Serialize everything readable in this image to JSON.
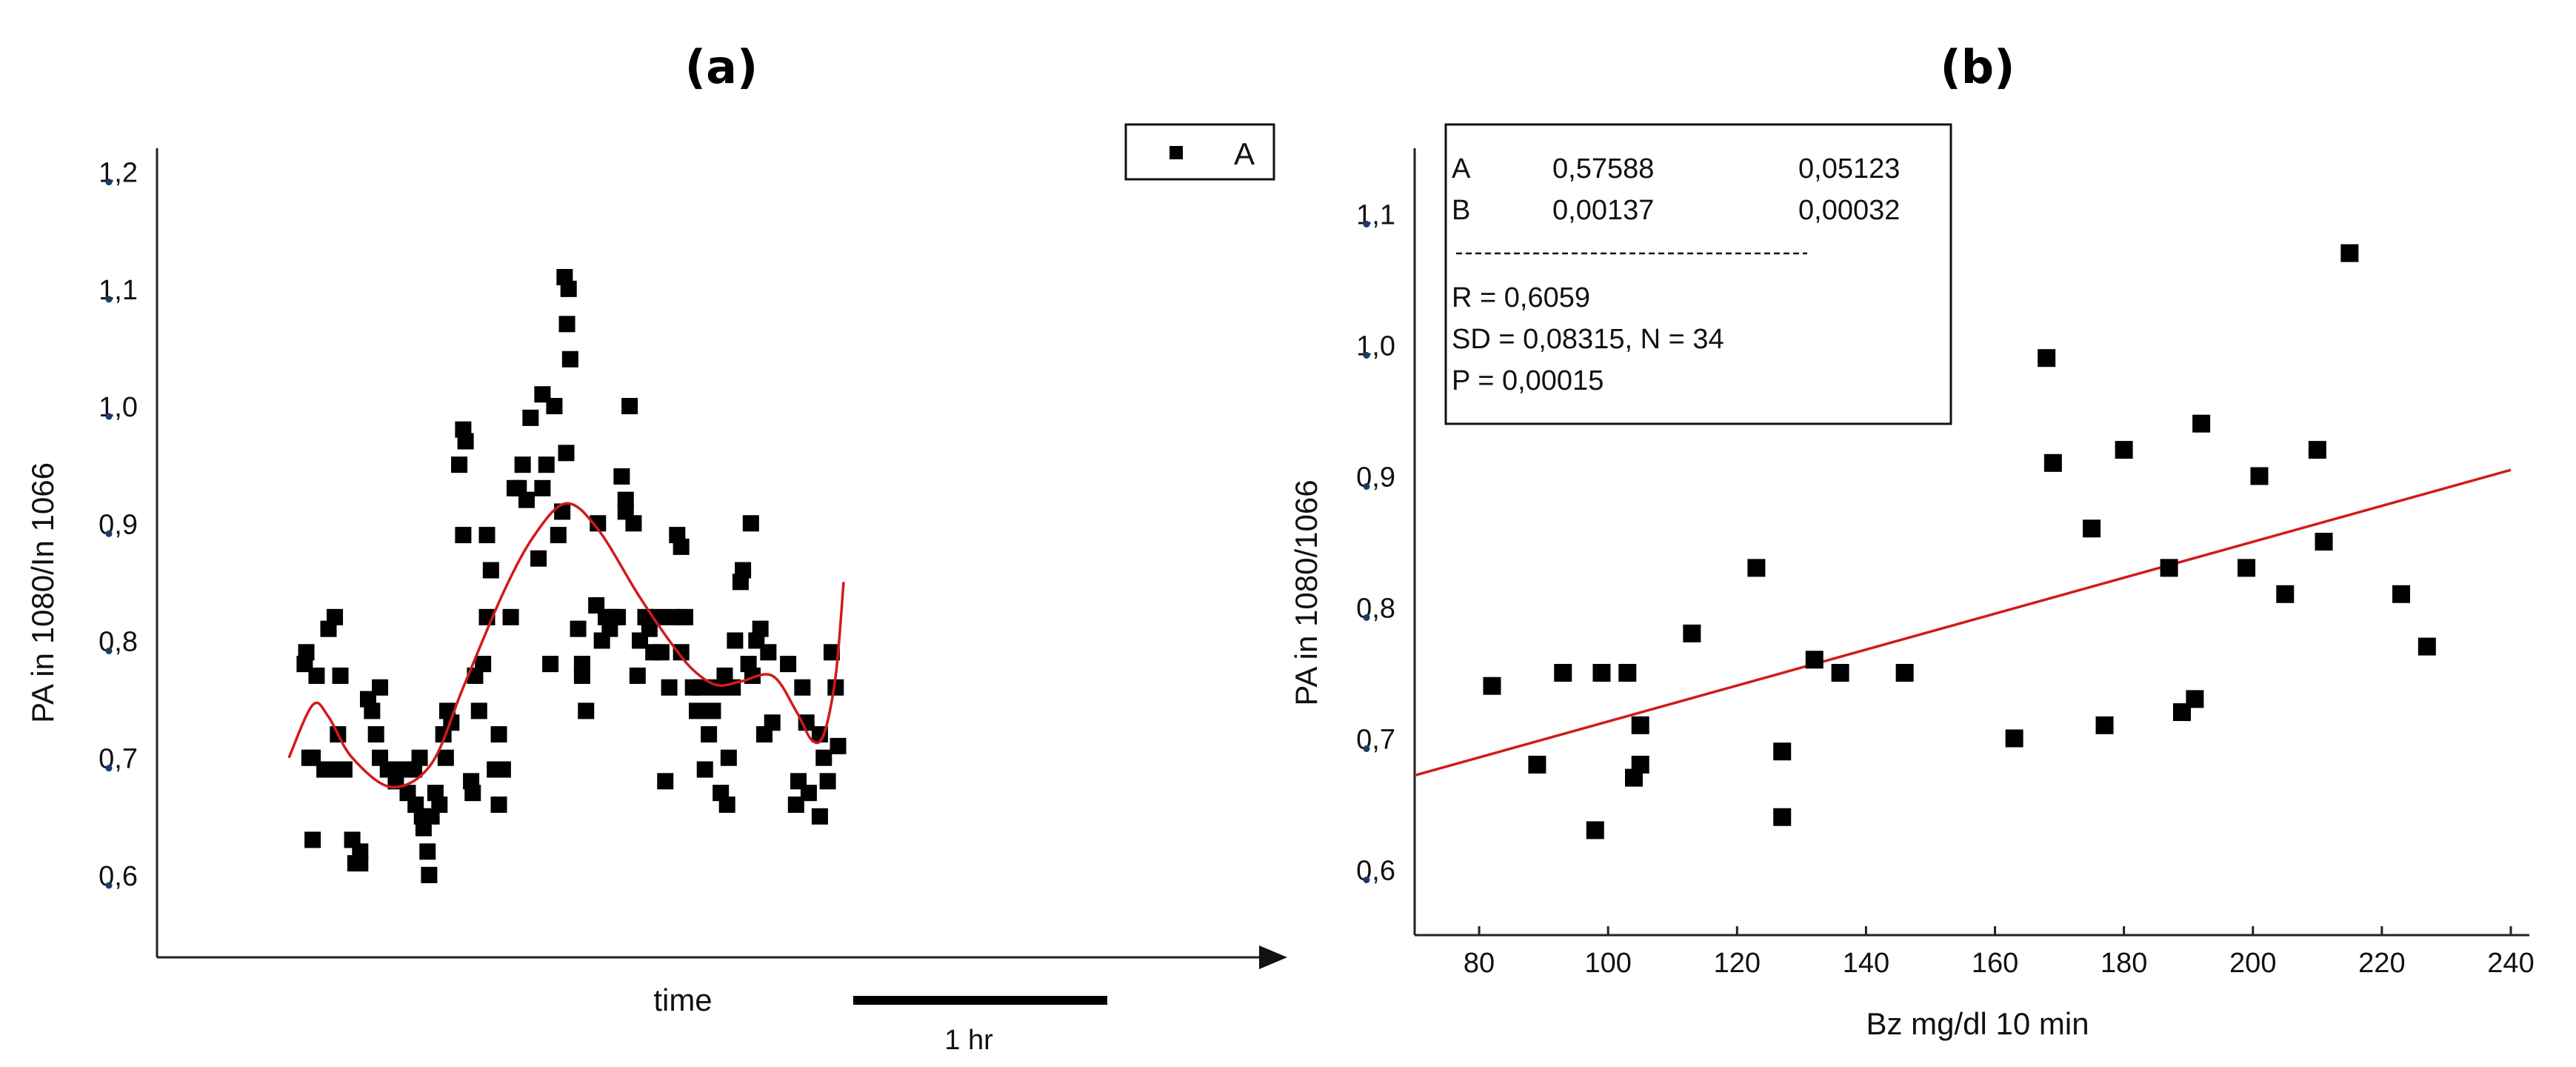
{
  "chart_data": [
    {
      "panel": "(a)",
      "type": "scatter",
      "title": "(a)",
      "xlabel": "time",
      "ylabel": "PA in 1080/In 1066",
      "ylim": [
        0.55,
        1.22
      ],
      "xlim": [
        0,
        100
      ],
      "y_ticks": [
        "1,2",
        "1,1",
        "1,0",
        "0,9",
        "0,8",
        "0,7",
        "0,6"
      ],
      "y_tick_values": [
        1.2,
        1.1,
        1.0,
        0.9,
        0.8,
        0.7,
        0.6
      ],
      "legend": {
        "label": "A",
        "position": "top-right"
      },
      "scale_bar": {
        "label": "1 hr",
        "length": 23
      },
      "grid": false,
      "series": [
        {
          "name": "A",
          "points": [
            [
              2,
              0.78
            ],
            [
              2.2,
              0.79
            ],
            [
              2.6,
              0.7
            ],
            [
              3,
              0.7
            ],
            [
              3,
              0.63
            ],
            [
              3.5,
              0.77
            ],
            [
              4.5,
              0.69
            ],
            [
              5,
              0.81
            ],
            [
              5.5,
              0.69
            ],
            [
              5.8,
              0.82
            ],
            [
              6,
              0.69
            ],
            [
              6.2,
              0.72
            ],
            [
              6.5,
              0.77
            ],
            [
              7,
              0.69
            ],
            [
              8,
              0.63
            ],
            [
              8.4,
              0.61
            ],
            [
              9,
              0.61
            ],
            [
              9,
              0.62
            ],
            [
              10,
              0.75
            ],
            [
              10.5,
              0.74
            ],
            [
              11,
              0.72
            ],
            [
              11.5,
              0.7
            ],
            [
              11.5,
              0.76
            ],
            [
              12.5,
              0.69
            ],
            [
              13.5,
              0.68
            ],
            [
              14,
              0.69
            ],
            [
              14.5,
              0.69
            ],
            [
              15,
              0.67
            ],
            [
              15.8,
              0.69
            ],
            [
              16,
              0.66
            ],
            [
              16.5,
              0.7
            ],
            [
              16.8,
              0.65
            ],
            [
              17,
              0.64
            ],
            [
              17.5,
              0.62
            ],
            [
              17.7,
              0.6
            ],
            [
              18,
              0.65
            ],
            [
              18.5,
              0.67
            ],
            [
              19,
              0.66
            ],
            [
              19.5,
              0.72
            ],
            [
              19.8,
              0.7
            ],
            [
              20,
              0.74
            ],
            [
              20.5,
              0.73
            ],
            [
              21.5,
              0.95
            ],
            [
              22,
              0.89
            ],
            [
              22,
              0.98
            ],
            [
              22.3,
              0.97
            ],
            [
              23,
              0.68
            ],
            [
              23.2,
              0.67
            ],
            [
              23.5,
              0.77
            ],
            [
              24,
              0.74
            ],
            [
              24.5,
              0.78
            ],
            [
              25,
              0.82
            ],
            [
              25,
              0.89
            ],
            [
              25.5,
              0.86
            ],
            [
              26,
              0.69
            ],
            [
              26.5,
              0.72
            ],
            [
              26.5,
              0.66
            ],
            [
              27,
              0.69
            ],
            [
              28,
              0.82
            ],
            [
              28.5,
              0.93
            ],
            [
              29,
              0.93
            ],
            [
              29.5,
              0.95
            ],
            [
              30,
              0.92
            ],
            [
              30.5,
              0.99
            ],
            [
              31.5,
              0.87
            ],
            [
              32,
              1.01
            ],
            [
              32,
              0.93
            ],
            [
              32.5,
              0.95
            ],
            [
              33,
              0.78
            ],
            [
              33.5,
              1.0
            ],
            [
              34,
              0.89
            ],
            [
              34.5,
              0.91
            ],
            [
              34.8,
              1.11
            ],
            [
              35,
              0.96
            ],
            [
              35.1,
              1.07
            ],
            [
              35.3,
              1.1
            ],
            [
              35.5,
              1.04
            ],
            [
              36.5,
              0.81
            ],
            [
              37,
              0.78
            ],
            [
              37,
              0.77
            ],
            [
              37.5,
              0.74
            ],
            [
              38.8,
              0.83
            ],
            [
              39,
              0.9
            ],
            [
              39.5,
              0.8
            ],
            [
              40,
              0.82
            ],
            [
              40.5,
              0.81
            ],
            [
              41,
              0.82
            ],
            [
              41.5,
              0.82
            ],
            [
              42,
              0.94
            ],
            [
              42.5,
              0.91
            ],
            [
              42.5,
              0.92
            ],
            [
              43,
              1.0
            ],
            [
              43.5,
              0.9
            ],
            [
              44,
              0.77
            ],
            [
              44.3,
              0.8
            ],
            [
              45,
              0.82
            ],
            [
              45.5,
              0.81
            ],
            [
              46,
              0.79
            ],
            [
              46.5,
              0.82
            ],
            [
              47,
              0.79
            ],
            [
              47.5,
              0.68
            ],
            [
              48,
              0.76
            ],
            [
              48.5,
              0.82
            ],
            [
              49,
              0.89
            ],
            [
              49.5,
              0.88
            ],
            [
              49.5,
              0.79
            ],
            [
              50,
              0.82
            ],
            [
              51,
              0.76
            ],
            [
              51.5,
              0.74
            ],
            [
              52,
              0.76
            ],
            [
              52.5,
              0.69
            ],
            [
              53,
              0.72
            ],
            [
              53.5,
              0.74
            ],
            [
              54,
              0.76
            ],
            [
              54.5,
              0.67
            ],
            [
              55,
              0.77
            ],
            [
              55.3,
              0.66
            ],
            [
              55.5,
              0.7
            ],
            [
              56,
              0.76
            ],
            [
              56.3,
              0.8
            ],
            [
              57,
              0.85
            ],
            [
              57.3,
              0.86
            ],
            [
              58,
              0.78
            ],
            [
              58.3,
              0.9
            ],
            [
              58.5,
              0.77
            ],
            [
              59,
              0.8
            ],
            [
              59.5,
              0.81
            ],
            [
              60,
              0.72
            ],
            [
              60.5,
              0.79
            ],
            [
              61,
              0.73
            ],
            [
              63,
              0.78
            ],
            [
              64,
              0.66
            ],
            [
              64.3,
              0.68
            ],
            [
              64.8,
              0.76
            ],
            [
              65.3,
              0.73
            ],
            [
              65.6,
              0.67
            ],
            [
              67,
              0.72
            ],
            [
              67,
              0.65
            ],
            [
              67.5,
              0.7
            ],
            [
              68,
              0.68
            ],
            [
              68.5,
              0.79
            ],
            [
              69,
              0.76
            ],
            [
              69.3,
              0.71
            ]
          ]
        }
      ],
      "fit_curve": [
        [
          0,
          0.7
        ],
        [
          3,
          0.745
        ],
        [
          5,
          0.735
        ],
        [
          8,
          0.7
        ],
        [
          13,
          0.675
        ],
        [
          18,
          0.695
        ],
        [
          22,
          0.76
        ],
        [
          27,
          0.84
        ],
        [
          31,
          0.89
        ],
        [
          35,
          0.917
        ],
        [
          39,
          0.895
        ],
        [
          44,
          0.84
        ],
        [
          48,
          0.8
        ],
        [
          51,
          0.775
        ],
        [
          54,
          0.762
        ],
        [
          57,
          0.765
        ],
        [
          61,
          0.77
        ],
        [
          64,
          0.74
        ],
        [
          66,
          0.715
        ],
        [
          67.5,
          0.72
        ],
        [
          69,
          0.77
        ],
        [
          70,
          0.85
        ]
      ]
    },
    {
      "panel": "(b)",
      "type": "scatter",
      "title": "(b)",
      "xlabel": "Bz mg/dl 10 min",
      "ylabel": "PA in 1080/1066",
      "xlim": [
        70,
        240
      ],
      "ylim": [
        0.55,
        1.15
      ],
      "x_ticks": [
        "80",
        "100",
        "120",
        "140",
        "160",
        "180",
        "200",
        "220",
        "240"
      ],
      "x_tick_values": [
        80,
        100,
        120,
        140,
        160,
        180,
        200,
        220,
        240
      ],
      "y_ticks": [
        "1,1",
        "1,0",
        "0,9",
        "0,8",
        "0,7",
        "0,6"
      ],
      "y_tick_values": [
        1.1,
        1.0,
        0.9,
        0.8,
        0.7,
        0.6
      ],
      "grid": false,
      "stats": {
        "row_a_name": "A",
        "row_a_value": "0,57588",
        "row_a_error": "0,05123",
        "row_b_name": "B",
        "row_b_value": "0,00137",
        "row_b_error": "0,00032",
        "r_line": "R = 0,6059",
        "sd_line": "SD = 0,08315, N = 34",
        "p_line": "P = 0,00015"
      },
      "series": [
        {
          "name": "data",
          "points": [
            [
              82,
              0.74
            ],
            [
              89,
              0.68
            ],
            [
              93,
              0.75
            ],
            [
              98,
              0.63
            ],
            [
              99,
              0.75
            ],
            [
              103,
              0.75
            ],
            [
              104,
              0.67
            ],
            [
              105,
              0.68
            ],
            [
              105,
              0.71
            ],
            [
              113,
              0.78
            ],
            [
              123,
              0.83
            ],
            [
              127,
              0.69
            ],
            [
              127,
              0.64
            ],
            [
              132,
              0.76
            ],
            [
              136,
              0.75
            ],
            [
              146,
              0.75
            ],
            [
              163,
              0.7
            ],
            [
              168,
              0.99
            ],
            [
              169,
              0.91
            ],
            [
              175,
              0.86
            ],
            [
              177,
              0.71
            ],
            [
              180,
              0.92
            ],
            [
              187,
              0.83
            ],
            [
              189,
              0.72
            ],
            [
              191,
              0.73
            ],
            [
              192,
              0.94
            ],
            [
              199,
              0.83
            ],
            [
              201,
              0.9
            ],
            [
              205,
              0.81
            ],
            [
              210,
              0.92
            ],
            [
              211,
              0.85
            ],
            [
              215,
              1.07
            ],
            [
              223,
              0.81
            ],
            [
              227,
              0.77
            ]
          ]
        }
      ],
      "fit_line": {
        "intercept": 0.57588,
        "slope": 0.00137
      }
    }
  ]
}
